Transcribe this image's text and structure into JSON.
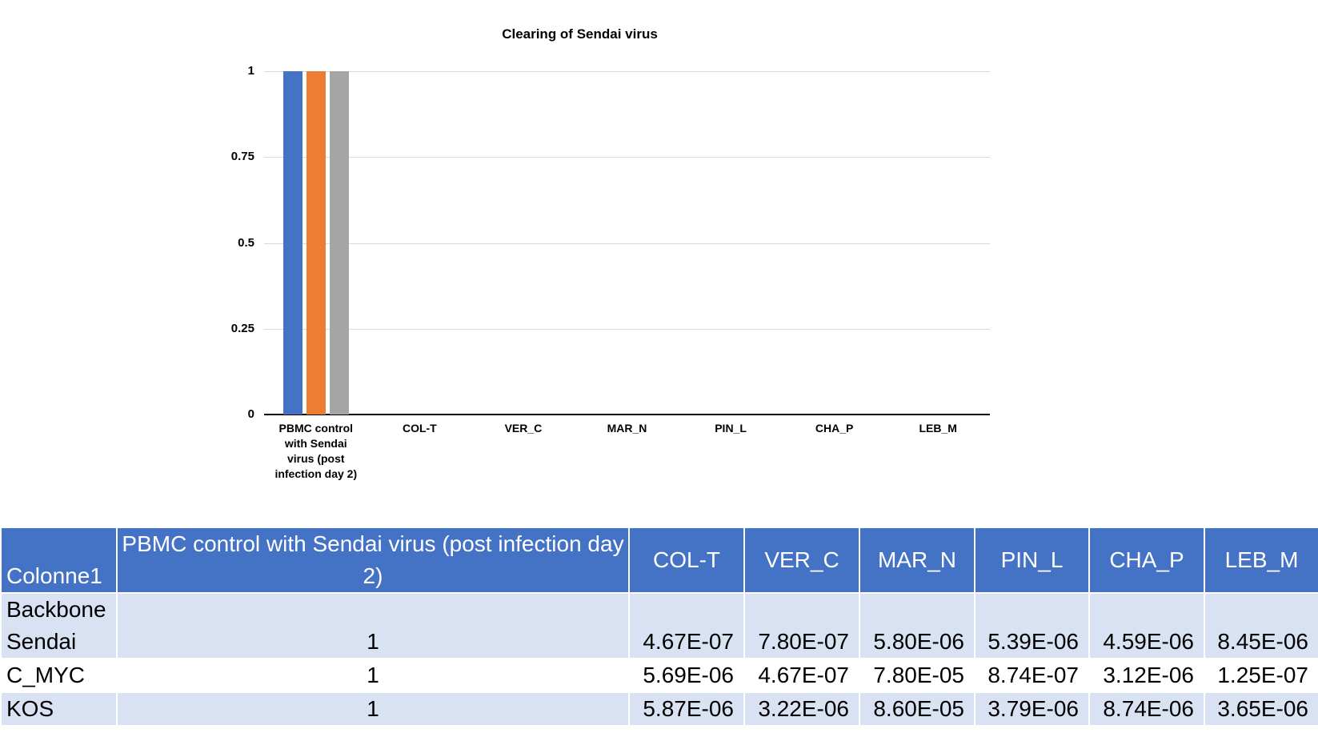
{
  "chart_data": {
    "type": "bar",
    "title": "Clearing of Sendai virus",
    "categories": [
      "PBMC control with Sendai virus (post infection day 2)",
      "COL-T",
      "VER_C",
      "MAR_N",
      "PIN_L",
      "CHA_P",
      "LEB_M"
    ],
    "series": [
      {
        "name": "Backbone Sendai",
        "color": "#4472C4",
        "values": [
          1,
          4.67e-07,
          7.8e-07,
          5.8e-06,
          5.39e-06,
          4.59e-06,
          8.45e-06
        ]
      },
      {
        "name": "C_MYC",
        "color": "#ED7D31",
        "values": [
          1,
          5.69e-06,
          4.67e-07,
          7.8e-05,
          8.74e-07,
          3.12e-06,
          1.25e-07
        ]
      },
      {
        "name": "KOS",
        "color": "#A5A5A5",
        "values": [
          1,
          5.87e-06,
          3.22e-06,
          8.6e-05,
          3.79e-06,
          8.74e-06,
          3.65e-06
        ]
      }
    ],
    "ylim": [
      0,
      1
    ],
    "yticks": [
      0,
      0.25,
      0.5,
      0.75,
      1
    ],
    "ytick_labels": [
      "0",
      "0.25",
      "0.5",
      "0.75",
      "1"
    ],
    "grid": true,
    "legend": "none",
    "xlabel": "",
    "ylabel": ""
  },
  "table": {
    "columns": [
      "Colonne1",
      "PBMC control with Sendai virus (post infection day 2)",
      "COL-T",
      "VER_C",
      "MAR_N",
      "PIN_L",
      "CHA_P",
      "LEB_M"
    ],
    "rows": [
      [
        "Backbone Sendai",
        "1",
        "4.67E-07",
        "7.80E-07",
        "5.80E-06",
        "5.39E-06",
        "4.59E-06",
        "8.45E-06"
      ],
      [
        "C_MYC",
        "1",
        "5.69E-06",
        "4.67E-07",
        "7.80E-05",
        "8.74E-07",
        "3.12E-06",
        "1.25E-07"
      ],
      [
        "KOS",
        "1",
        "5.87E-06",
        "3.22E-06",
        "8.60E-05",
        "3.79E-06",
        "8.74E-06",
        "3.65E-06"
      ]
    ]
  },
  "colors": {
    "header_bg": "#4472C4",
    "header_text": "#FFFFFF",
    "band_bg": "#D9E2F3",
    "white_row": "#FFFFFF",
    "gridline": "#D9D9D9",
    "axis": "#000000",
    "bar_blue": "#4472C4",
    "bar_orange": "#ED7D31",
    "bar_gray": "#A5A5A5"
  }
}
